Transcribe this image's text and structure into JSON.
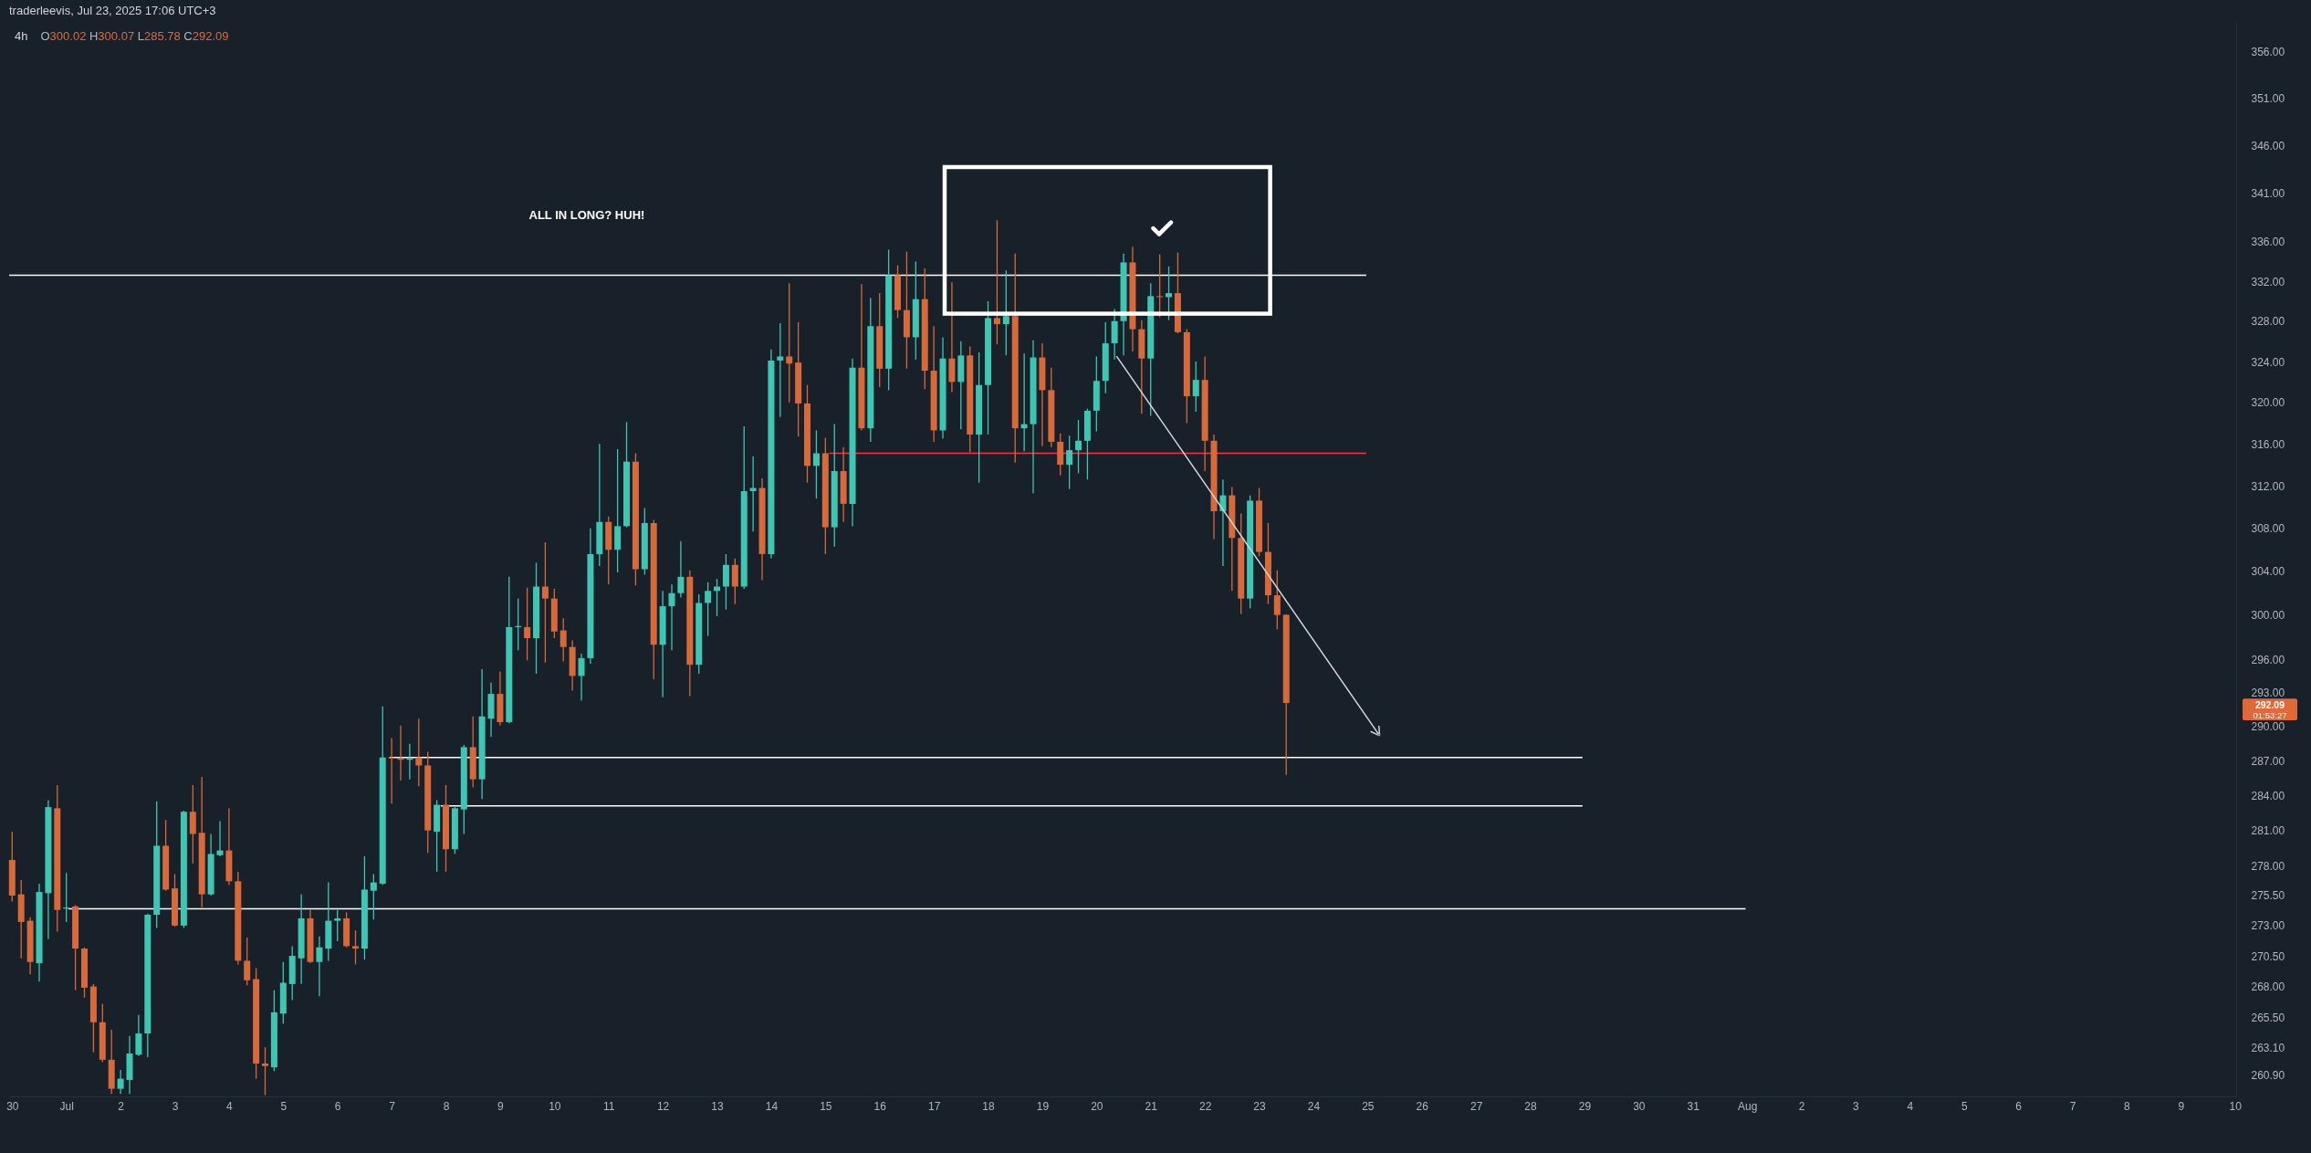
{
  "chart_data": {
    "type": "candlestick",
    "title": "traderleevis, Jul 23, 2025 17:06 UTC+3",
    "subtitle": "4h",
    "annotations": [
      "O300.02 H300.07 L285.78 C292.09",
      "ALL IN LONG? HUH!",
      "292.09",
      "01:53:27"
    ],
    "log": true,
    "xlim": [
      "2025-06-30T01:40",
      "2025-08-10T03:30"
    ],
    "ylim": [
      259.2,
      359.2
    ],
    "xticks": [
      {
        "value": "2025-06-30T03:00",
        "label": "30"
      },
      {
        "value": "2025-07-01T03:00",
        "label": "Jul"
      },
      {
        "value": "2025-07-02T03:00",
        "label": "2"
      },
      {
        "value": "2025-07-03T03:00",
        "label": "3"
      },
      {
        "value": "2025-07-04T03:00",
        "label": "4"
      },
      {
        "value": "2025-07-05T03:00",
        "label": "5"
      },
      {
        "value": "2025-07-06T03:00",
        "label": "6"
      },
      {
        "value": "2025-07-07T03:00",
        "label": "7"
      },
      {
        "value": "2025-07-08T03:00",
        "label": "8"
      },
      {
        "value": "2025-07-09T03:00",
        "label": "9"
      },
      {
        "value": "2025-07-10T03:00",
        "label": "10"
      },
      {
        "value": "2025-07-11T03:00",
        "label": "11"
      },
      {
        "value": "2025-07-12T03:00",
        "label": "12"
      },
      {
        "value": "2025-07-13T03:00",
        "label": "13"
      },
      {
        "value": "2025-07-14T03:00",
        "label": "14"
      },
      {
        "value": "2025-07-15T03:00",
        "label": "15"
      },
      {
        "value": "2025-07-16T03:00",
        "label": "16"
      },
      {
        "value": "2025-07-17T03:00",
        "label": "17"
      },
      {
        "value": "2025-07-18T03:00",
        "label": "18"
      },
      {
        "value": "2025-07-19T03:00",
        "label": "19"
      },
      {
        "value": "2025-07-20T03:00",
        "label": "20"
      },
      {
        "value": "2025-07-21T03:00",
        "label": "21"
      },
      {
        "value": "2025-07-22T03:00",
        "label": "22"
      },
      {
        "value": "2025-07-23T03:00",
        "label": "23"
      },
      {
        "value": "2025-07-24T03:00",
        "label": "24"
      },
      {
        "value": "2025-07-25T03:00",
        "label": "25"
      },
      {
        "value": "2025-07-26T03:00",
        "label": "26"
      },
      {
        "value": "2025-07-27T03:00",
        "label": "27"
      },
      {
        "value": "2025-07-28T03:00",
        "label": "28"
      },
      {
        "value": "2025-07-29T03:00",
        "label": "29"
      },
      {
        "value": "2025-07-30T03:00",
        "label": "30"
      },
      {
        "value": "2025-07-31T03:00",
        "label": "31"
      },
      {
        "value": "2025-08-01T03:00",
        "label": "Aug"
      },
      {
        "value": "2025-08-02T03:00",
        "label": "2"
      },
      {
        "value": "2025-08-03T03:00",
        "label": "3"
      },
      {
        "value": "2025-08-04T03:00",
        "label": "4"
      },
      {
        "value": "2025-08-05T03:00",
        "label": "5"
      },
      {
        "value": "2025-08-06T03:00",
        "label": "6"
      },
      {
        "value": "2025-08-07T03:00",
        "label": "7"
      },
      {
        "value": "2025-08-08T03:00",
        "label": "8"
      },
      {
        "value": "2025-08-09T03:00",
        "label": "9"
      },
      {
        "value": "2025-08-10T03:00",
        "label": "10"
      }
    ],
    "yticks": [
      {
        "value": 356,
        "label": "356.00"
      },
      {
        "value": 351,
        "label": "351.00"
      },
      {
        "value": 346,
        "label": "346.00"
      },
      {
        "value": 341,
        "label": "341.00"
      },
      {
        "value": 336,
        "label": "336.00"
      },
      {
        "value": 332,
        "label": "332.00"
      },
      {
        "value": 328,
        "label": "328.00"
      },
      {
        "value": 324,
        "label": "324.00"
      },
      {
        "value": 320,
        "label": "320.00"
      },
      {
        "value": 316,
        "label": "316.00"
      },
      {
        "value": 312,
        "label": "312.00"
      },
      {
        "value": 308,
        "label": "308.00"
      },
      {
        "value": 304,
        "label": "304.00"
      },
      {
        "value": 300,
        "label": "300.00"
      },
      {
        "value": 296,
        "label": "296.00"
      },
      {
        "value": 293,
        "label": "293.00"
      },
      {
        "value": 290,
        "label": "290.00"
      },
      {
        "value": 287,
        "label": "287.00"
      },
      {
        "value": 284,
        "label": "284.00"
      },
      {
        "value": 281,
        "label": "281.00"
      },
      {
        "value": 278,
        "label": "278.00"
      },
      {
        "value": 275.5,
        "label": "275.50"
      },
      {
        "value": 273,
        "label": "273.00"
      },
      {
        "value": 270.5,
        "label": "270.50"
      },
      {
        "value": 268,
        "label": "268.00"
      },
      {
        "value": 265.5,
        "label": "265.50"
      },
      {
        "value": 263.1,
        "label": "263.10"
      },
      {
        "value": 260.9,
        "label": "260.90"
      }
    ],
    "x": [
      "2025-06-30T03:00",
      "2025-06-30T07:00",
      "2025-06-30T11:00",
      "2025-06-30T15:00",
      "2025-06-30T19:00",
      "2025-06-30T23:00",
      "2025-07-01T03:00",
      "2025-07-01T07:00",
      "2025-07-01T11:00",
      "2025-07-01T15:00",
      "2025-07-01T19:00",
      "2025-07-01T23:00",
      "2025-07-02T03:00",
      "2025-07-02T07:00",
      "2025-07-02T11:00",
      "2025-07-02T15:00",
      "2025-07-02T19:00",
      "2025-07-02T23:00",
      "2025-07-03T03:00",
      "2025-07-03T07:00",
      "2025-07-03T11:00",
      "2025-07-03T15:00",
      "2025-07-03T19:00",
      "2025-07-03T23:00",
      "2025-07-04T03:00",
      "2025-07-04T07:00",
      "2025-07-04T11:00",
      "2025-07-04T15:00",
      "2025-07-04T19:00",
      "2025-07-04T23:00",
      "2025-07-05T03:00",
      "2025-07-05T07:00",
      "2025-07-05T11:00",
      "2025-07-05T15:00",
      "2025-07-05T19:00",
      "2025-07-05T23:00",
      "2025-07-06T03:00",
      "2025-07-06T07:00",
      "2025-07-06T11:00",
      "2025-07-06T15:00",
      "2025-07-06T19:00",
      "2025-07-06T23:00",
      "2025-07-07T03:00",
      "2025-07-07T07:00",
      "2025-07-07T11:00",
      "2025-07-07T15:00",
      "2025-07-07T19:00",
      "2025-07-07T23:00",
      "2025-07-08T03:00",
      "2025-07-08T07:00",
      "2025-07-08T11:00",
      "2025-07-08T15:00",
      "2025-07-08T19:00",
      "2025-07-08T23:00",
      "2025-07-09T03:00",
      "2025-07-09T07:00",
      "2025-07-09T11:00",
      "2025-07-09T15:00",
      "2025-07-09T19:00",
      "2025-07-09T23:00",
      "2025-07-10T03:00",
      "2025-07-10T07:00",
      "2025-07-10T11:00",
      "2025-07-10T15:00",
      "2025-07-10T19:00",
      "2025-07-10T23:00",
      "2025-07-11T03:00",
      "2025-07-11T07:00",
      "2025-07-11T11:00",
      "2025-07-11T15:00",
      "2025-07-11T19:00",
      "2025-07-11T23:00",
      "2025-07-12T03:00",
      "2025-07-12T07:00",
      "2025-07-12T11:00",
      "2025-07-12T15:00",
      "2025-07-12T19:00",
      "2025-07-12T23:00",
      "2025-07-13T03:00",
      "2025-07-13T07:00",
      "2025-07-13T11:00",
      "2025-07-13T15:00",
      "2025-07-13T19:00",
      "2025-07-13T23:00",
      "2025-07-14T03:00",
      "2025-07-14T07:00",
      "2025-07-14T11:00",
      "2025-07-14T15:00",
      "2025-07-14T19:00",
      "2025-07-14T23:00",
      "2025-07-15T03:00",
      "2025-07-15T07:00",
      "2025-07-15T11:00",
      "2025-07-15T15:00",
      "2025-07-15T19:00",
      "2025-07-15T23:00",
      "2025-07-16T03:00",
      "2025-07-16T07:00",
      "2025-07-16T11:00",
      "2025-07-16T15:00",
      "2025-07-16T19:00",
      "2025-07-16T23:00",
      "2025-07-17T03:00",
      "2025-07-17T07:00",
      "2025-07-17T11:00",
      "2025-07-17T15:00",
      "2025-07-17T19:00",
      "2025-07-17T23:00",
      "2025-07-18T03:00",
      "2025-07-18T07:00",
      "2025-07-18T11:00",
      "2025-07-18T15:00",
      "2025-07-18T19:00",
      "2025-07-18T23:00",
      "2025-07-19T03:00",
      "2025-07-19T07:00",
      "2025-07-19T11:00",
      "2025-07-19T15:00",
      "2025-07-19T19:00",
      "2025-07-19T23:00",
      "2025-07-20T03:00",
      "2025-07-20T07:00",
      "2025-07-20T11:00",
      "2025-07-20T15:00",
      "2025-07-20T19:00",
      "2025-07-20T23:00",
      "2025-07-21T03:00",
      "2025-07-21T07:00",
      "2025-07-21T11:00",
      "2025-07-21T15:00",
      "2025-07-21T19:00",
      "2025-07-21T23:00",
      "2025-07-22T03:00",
      "2025-07-22T07:00",
      "2025-07-22T11:00",
      "2025-07-22T15:00",
      "2025-07-22T19:00",
      "2025-07-22T23:00",
      "2025-07-23T03:00",
      "2025-07-23T07:00",
      "2025-07-23T11:00",
      "2025-07-23T15:00"
    ],
    "ohlc": [
      [
        278.5,
        280.9,
        275.0,
        275.5
      ],
      [
        275.6,
        276.8,
        270.3,
        273.3
      ],
      [
        273.4,
        273.7,
        269.0,
        270.0
      ],
      [
        269.9,
        276.5,
        268.4,
        275.8
      ],
      [
        275.7,
        283.6,
        271.9,
        283.0
      ],
      [
        282.9,
        284.9,
        272.5,
        274.3
      ],
      [
        274.4,
        277.4,
        273.3,
        274.5
      ],
      [
        274.6,
        274.7,
        267.7,
        271.1
      ],
      [
        271.1,
        271.2,
        267.1,
        267.9
      ],
      [
        268.0,
        268.2,
        262.7,
        265.1
      ],
      [
        265.1,
        266.6,
        261.9,
        262.1
      ],
      [
        262.1,
        264.5,
        259.4,
        259.8
      ],
      [
        259.8,
        261.3,
        259.4,
        260.6
      ],
      [
        260.5,
        264.0,
        259.4,
        262.6
      ],
      [
        262.5,
        265.7,
        262.4,
        264.2
      ],
      [
        264.2,
        274.0,
        262.3,
        273.9
      ],
      [
        273.9,
        283.5,
        272.8,
        279.7
      ],
      [
        279.7,
        281.9,
        275.9,
        276.0
      ],
      [
        276.1,
        277.3,
        272.9,
        273.0
      ],
      [
        273.0,
        282.7,
        272.8,
        282.6
      ],
      [
        282.6,
        284.9,
        278.2,
        280.7
      ],
      [
        280.8,
        285.6,
        274.5,
        275.6
      ],
      [
        275.6,
        280.7,
        275.5,
        279.0
      ],
      [
        278.9,
        281.8,
        278.8,
        279.3
      ],
      [
        279.3,
        282.9,
        276.4,
        276.7
      ],
      [
        276.7,
        277.5,
        269.8,
        270.1
      ],
      [
        270.1,
        272.0,
        268.1,
        268.5
      ],
      [
        268.6,
        269.5,
        260.6,
        261.8
      ],
      [
        261.8,
        263.1,
        259.3,
        261.6
      ],
      [
        261.5,
        267.7,
        261.2,
        265.9
      ],
      [
        265.8,
        270.0,
        265.0,
        268.3
      ],
      [
        268.2,
        271.3,
        266.9,
        270.5
      ],
      [
        270.3,
        275.6,
        268.2,
        273.6
      ],
      [
        273.6,
        274.3,
        269.9,
        270.0
      ],
      [
        270.0,
        272.1,
        267.2,
        271.2
      ],
      [
        271.1,
        276.6,
        270.1,
        273.4
      ],
      [
        273.4,
        274.3,
        271.7,
        273.6
      ],
      [
        273.6,
        274.1,
        271.2,
        271.3
      ],
      [
        271.3,
        272.6,
        269.8,
        271.1
      ],
      [
        271.1,
        278.8,
        270.2,
        276.0
      ],
      [
        275.9,
        277.3,
        273.5,
        276.6
      ],
      [
        276.5,
        291.8,
        276.4,
        287.3
      ],
      [
        287.3,
        289.0,
        283.3,
        287.2
      ],
      [
        287.2,
        290.1,
        285.3,
        287.1
      ],
      [
        287.1,
        288.5,
        285.4,
        287.2
      ],
      [
        287.3,
        290.7,
        284.8,
        286.6
      ],
      [
        286.6,
        287.8,
        279.1,
        281.0
      ],
      [
        280.9,
        283.6,
        277.5,
        283.2
      ],
      [
        283.2,
        284.9,
        277.5,
        279.4
      ],
      [
        279.4,
        283.0,
        279.0,
        282.9
      ],
      [
        282.8,
        288.4,
        280.7,
        288.2
      ],
      [
        288.2,
        290.9,
        284.7,
        285.4
      ],
      [
        285.4,
        295.1,
        283.7,
        290.9
      ],
      [
        290.7,
        293.9,
        289.1,
        292.9
      ],
      [
        292.9,
        294.9,
        290.1,
        290.4
      ],
      [
        290.4,
        303.5,
        290.3,
        298.9
      ],
      [
        298.9,
        301.5,
        296.8,
        299.0
      ],
      [
        298.9,
        302.5,
        295.9,
        297.9
      ],
      [
        297.9,
        304.8,
        294.7,
        302.6
      ],
      [
        302.6,
        306.7,
        295.7,
        301.5
      ],
      [
        301.5,
        302.4,
        297.9,
        298.5
      ],
      [
        298.6,
        299.7,
        295.8,
        297.1
      ],
      [
        297.1,
        297.7,
        293.2,
        294.5
      ],
      [
        294.5,
        296.5,
        292.3,
        296.1
      ],
      [
        296.1,
        308.0,
        295.6,
        305.6
      ],
      [
        305.6,
        316.0,
        304.5,
        308.6
      ],
      [
        308.6,
        309.1,
        302.8,
        306.0
      ],
      [
        306.0,
        315.5,
        303.9,
        308.2
      ],
      [
        308.2,
        318.1,
        308.1,
        314.3
      ],
      [
        314.3,
        315.1,
        302.7,
        304.2
      ],
      [
        304.2,
        309.9,
        303.7,
        308.5
      ],
      [
        308.5,
        308.8,
        294.2,
        297.3
      ],
      [
        297.3,
        302.2,
        292.6,
        300.8
      ],
      [
        300.8,
        302.8,
        296.8,
        302.0
      ],
      [
        302.0,
        306.8,
        301.6,
        303.5
      ],
      [
        303.5,
        304.1,
        292.7,
        295.5
      ],
      [
        295.5,
        301.9,
        294.7,
        301.1
      ],
      [
        301.1,
        303.0,
        298.1,
        302.2
      ],
      [
        302.2,
        303.3,
        299.9,
        302.6
      ],
      [
        302.6,
        305.6,
        300.5,
        304.6
      ],
      [
        304.6,
        305.2,
        301.0,
        302.6
      ],
      [
        302.6,
        317.7,
        302.4,
        311.5
      ],
      [
        311.5,
        314.8,
        307.7,
        311.8
      ],
      [
        311.8,
        312.7,
        303.2,
        305.6
      ],
      [
        305.6,
        325.2,
        305.2,
        324.1
      ],
      [
        324.1,
        327.8,
        318.6,
        324.5
      ],
      [
        324.5,
        331.8,
        320.0,
        323.8
      ],
      [
        323.9,
        327.9,
        316.7,
        319.9
      ],
      [
        319.9,
        321.7,
        312.3,
        313.9
      ],
      [
        313.9,
        317.3,
        310.8,
        315.1
      ],
      [
        315.1,
        316.6,
        305.6,
        308.1
      ],
      [
        308.1,
        317.9,
        306.3,
        313.4
      ],
      [
        313.4,
        315.7,
        308.6,
        310.3
      ],
      [
        310.3,
        324.3,
        308.2,
        323.4
      ],
      [
        323.4,
        331.7,
        317.3,
        317.5
      ],
      [
        317.5,
        330.3,
        316.2,
        327.5
      ],
      [
        327.5,
        330.8,
        321.5,
        323.3
      ],
      [
        323.3,
        335.2,
        321.2,
        332.6
      ],
      [
        332.6,
        333.6,
        328.3,
        329.1
      ],
      [
        329.1,
        335.0,
        323.3,
        326.4
      ],
      [
        326.4,
        334.0,
        324.2,
        330.2
      ],
      [
        330.2,
        333.3,
        321.3,
        323.1
      ],
      [
        323.1,
        327.5,
        316.2,
        317.3
      ],
      [
        317.3,
        326.4,
        316.5,
        324.3
      ],
      [
        324.3,
        331.9,
        321.0,
        322.0
      ],
      [
        322.0,
        326.0,
        317.4,
        324.6
      ],
      [
        324.6,
        325.5,
        315.2,
        316.9
      ],
      [
        316.9,
        324.9,
        312.3,
        321.7
      ],
      [
        321.7,
        330.0,
        316.9,
        328.3
      ],
      [
        328.3,
        338.2,
        325.7,
        327.7
      ],
      [
        327.7,
        333.1,
        324.6,
        328.5
      ],
      [
        328.5,
        334.8,
        314.2,
        317.5
      ],
      [
        317.5,
        324.8,
        315.3,
        317.9
      ],
      [
        317.9,
        326.1,
        311.3,
        324.4
      ],
      [
        324.4,
        325.8,
        315.8,
        321.2
      ],
      [
        321.2,
        323.4,
        315.7,
        316.2
      ],
      [
        316.2,
        317.0,
        313.0,
        314.0
      ],
      [
        314.0,
        316.8,
        311.7,
        315.4
      ],
      [
        315.4,
        318.3,
        313.2,
        316.3
      ],
      [
        316.3,
        319.4,
        312.6,
        319.2
      ],
      [
        319.2,
        324.5,
        317.2,
        322.1
      ],
      [
        322.1,
        327.9,
        320.9,
        325.8
      ],
      [
        325.8,
        329.2,
        324.2,
        328.0
      ],
      [
        328.0,
        334.8,
        324.6,
        333.9
      ],
      [
        333.9,
        335.5,
        325.0,
        327.2
      ],
      [
        327.2,
        328.1,
        318.9,
        324.3
      ],
      [
        324.3,
        331.8,
        318.7,
        330.5
      ],
      [
        330.5,
        334.7,
        328.4,
        330.4
      ],
      [
        330.4,
        333.5,
        328.1,
        330.8
      ],
      [
        330.8,
        334.9,
        326.8,
        326.9
      ],
      [
        326.9,
        327.2,
        318.0,
        320.6
      ],
      [
        320.6,
        324.0,
        319.1,
        322.2
      ],
      [
        322.2,
        324.5,
        313.4,
        316.3
      ],
      [
        316.3,
        316.9,
        307.0,
        309.6
      ],
      [
        309.6,
        312.6,
        304.5,
        311.1
      ],
      [
        311.1,
        311.9,
        302.2,
        307.1
      ],
      [
        307.1,
        309.4,
        300.1,
        301.5
      ],
      [
        301.5,
        311.1,
        300.6,
        310.6
      ],
      [
        310.6,
        311.8,
        305.4,
        305.8
      ],
      [
        305.8,
        308.5,
        301.0,
        301.8
      ],
      [
        301.8,
        304.1,
        298.7,
        300.0
      ],
      [
        300.02,
        300.07,
        285.78,
        292.09
      ]
    ],
    "colors": [
      "#d7693a",
      "#d7693a",
      "#d7693a",
      "#3ec6b4",
      "#3ec6b4",
      "#d7693a",
      "#3ec6b4",
      "#d7693a",
      "#d7693a",
      "#d7693a",
      "#d7693a",
      "#d7693a",
      "#3ec6b4",
      "#3ec6b4",
      "#3ec6b4",
      "#3ec6b4",
      "#3ec6b4",
      "#d7693a",
      "#d7693a",
      "#3ec6b4",
      "#d7693a",
      "#d7693a",
      "#3ec6b4",
      "#3ec6b4",
      "#d7693a",
      "#d7693a",
      "#d7693a",
      "#d7693a",
      "#d7693a",
      "#3ec6b4",
      "#3ec6b4",
      "#3ec6b4",
      "#3ec6b4",
      "#d7693a",
      "#3ec6b4",
      "#3ec6b4",
      "#3ec6b4",
      "#d7693a",
      "#d7693a",
      "#3ec6b4",
      "#3ec6b4",
      "#3ec6b4",
      "#d7693a",
      "#d7693a",
      "#3ec6b4",
      "#d7693a",
      "#d7693a",
      "#3ec6b4",
      "#d7693a",
      "#3ec6b4",
      "#3ec6b4",
      "#d7693a",
      "#3ec6b4",
      "#3ec6b4",
      "#d7693a",
      "#3ec6b4",
      "#3ec6b4",
      "#d7693a",
      "#3ec6b4",
      "#d7693a",
      "#d7693a",
      "#d7693a",
      "#d7693a",
      "#3ec6b4",
      "#3ec6b4",
      "#3ec6b4",
      "#d7693a",
      "#3ec6b4",
      "#3ec6b4",
      "#d7693a",
      "#3ec6b4",
      "#d7693a",
      "#3ec6b4",
      "#3ec6b4",
      "#3ec6b4",
      "#d7693a",
      "#3ec6b4",
      "#3ec6b4",
      "#3ec6b4",
      "#3ec6b4",
      "#d7693a",
      "#3ec6b4",
      "#3ec6b4",
      "#d7693a",
      "#3ec6b4",
      "#3ec6b4",
      "#d7693a",
      "#d7693a",
      "#d7693a",
      "#3ec6b4",
      "#d7693a",
      "#3ec6b4",
      "#d7693a",
      "#3ec6b4",
      "#d7693a",
      "#3ec6b4",
      "#d7693a",
      "#3ec6b4",
      "#d7693a",
      "#d7693a",
      "#3ec6b4",
      "#d7693a",
      "#d7693a",
      "#3ec6b4",
      "#d7693a",
      "#3ec6b4",
      "#d7693a",
      "#3ec6b4",
      "#3ec6b4",
      "#d7693a",
      "#3ec6b4",
      "#d7693a",
      "#3ec6b4",
      "#3ec6b4",
      "#d7693a",
      "#d7693a",
      "#d7693a",
      "#3ec6b4",
      "#3ec6b4",
      "#3ec6b4",
      "#3ec6b4",
      "#3ec6b4",
      "#3ec6b4",
      "#3ec6b4",
      "#d7693a",
      "#d7693a",
      "#3ec6b4",
      "#d7693a",
      "#3ec6b4",
      "#d7693a",
      "#d7693a",
      "#3ec6b4",
      "#d7693a",
      "#d7693a",
      "#3ec6b4",
      "#d7693a",
      "#d7693a",
      "#3ec6b4",
      "#d7693a",
      "#d7693a",
      "#d7693a",
      "#d7693a"
    ],
    "series": [
      {
        "type": "line",
        "x": [
          "2025-06-30T01:40",
          "2025-07-25T02:25"
        ],
        "values": [
          332.6,
          332.6
        ],
        "color": "#ffffff"
      },
      {
        "type": "line",
        "x": [
          "2025-07-15T04:40",
          "2025-07-25T02:25"
        ],
        "values": [
          315.1,
          315.1
        ],
        "color": "#f23645"
      },
      {
        "type": "line",
        "x": [
          "2025-07-07T02:00",
          "2025-07-29T02:10"
        ],
        "values": [
          287.3,
          287.3
        ],
        "color": "#ffffff"
      },
      {
        "type": "line",
        "x": [
          "2025-07-08T00:40",
          "2025-07-29T02:10"
        ],
        "values": [
          283.1,
          283.1
        ],
        "color": "#ffffff"
      },
      {
        "type": "line",
        "x": [
          "2025-07-01T04:00",
          "2025-08-01T02:20"
        ],
        "values": [
          274.4,
          274.4
        ],
        "color": "#ffffff"
      }
    ]
  }
}
